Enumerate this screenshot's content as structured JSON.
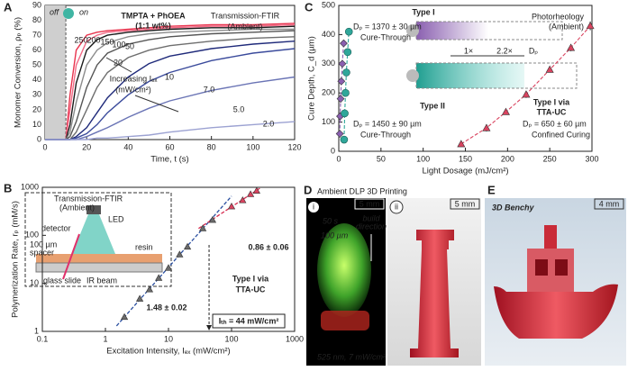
{
  "chart_data": [
    {
      "panel": "A",
      "type": "line",
      "xlabel": "Time, t (s)",
      "ylabel": "Monomer Conversion, ρₚ (%)",
      "x": [
        0,
        10,
        12,
        15,
        20,
        25,
        30,
        40,
        50,
        60,
        80,
        100,
        120
      ],
      "xlim": [
        0,
        120
      ],
      "xticks": [
        0,
        20,
        40,
        60,
        80,
        100,
        120
      ],
      "ylim": [
        0,
        90
      ],
      "yticks": [
        0,
        10,
        20,
        30,
        40,
        50,
        60,
        70,
        80,
        90
      ],
      "grid": false,
      "light_off": {
        "xlim": [
          0,
          10
        ],
        "labels": [
          "off",
          "on"
        ]
      },
      "annotations": [
        "TMPTA + PhOEA",
        "(1:1 wt%)",
        "Transmission-FTIR",
        "(Ambient)",
        "Increasing Iₑₓ",
        "(mW/cm²)"
      ],
      "series": [
        {
          "name": "250",
          "color": "#e8334d",
          "values": [
            0,
            0,
            30,
            60,
            70,
            72,
            73,
            74,
            75,
            76,
            77,
            77,
            78
          ]
        },
        {
          "name": "200",
          "color": "#f26a86",
          "values": [
            0,
            0,
            20,
            50,
            66,
            70,
            72,
            73,
            74,
            75,
            76,
            76,
            77
          ]
        },
        {
          "name": "150",
          "color": "#1a1a1a",
          "values": [
            0,
            0,
            10,
            38,
            60,
            67,
            70,
            72,
            73,
            74,
            75,
            75,
            76
          ]
        },
        {
          "name": "100",
          "color": "#8c8c8c",
          "values": [
            0,
            0,
            5,
            25,
            50,
            60,
            65,
            69,
            71,
            72,
            73,
            74,
            74
          ]
        },
        {
          "name": "50",
          "color": "#555555",
          "values": [
            0,
            0,
            2,
            12,
            35,
            50,
            58,
            64,
            67,
            69,
            71,
            72,
            73
          ]
        },
        {
          "name": "20",
          "color": "#6e6e6e",
          "values": [
            0,
            0,
            0,
            5,
            20,
            35,
            45,
            55,
            60,
            63,
            66,
            68,
            69
          ]
        },
        {
          "name": "10",
          "color": "#1f2a7a",
          "values": [
            0,
            0,
            0,
            2,
            8,
            18,
            28,
            42,
            51,
            56,
            61,
            64,
            66
          ]
        },
        {
          "name": "7.0",
          "color": "#3b4b9c",
          "values": [
            0,
            0,
            0,
            1,
            4,
            10,
            18,
            30,
            39,
            45,
            53,
            58,
            61
          ]
        },
        {
          "name": "5.0",
          "color": "#6a74b5",
          "values": [
            0,
            0,
            0,
            0,
            2,
            5,
            8,
            15,
            21,
            26,
            33,
            38,
            42
          ]
        },
        {
          "name": "2.0",
          "color": "#9ca2d2",
          "values": [
            0,
            0,
            0,
            0,
            0,
            1,
            1,
            2,
            3,
            5,
            8,
            10,
            12
          ]
        }
      ]
    },
    {
      "panel": "B",
      "type": "scatter",
      "log_x": true,
      "log_y": true,
      "xlabel": "Excitation Intensity, Iₑₓ (mW/cm²)",
      "ylabel": "Polymerization Rate, rₚ (mM/s)",
      "xlim": [
        0.1,
        1000
      ],
      "xticks": [
        0.1,
        1,
        10,
        100,
        1000
      ],
      "ylim": [
        1,
        1000
      ],
      "yticks": [
        1,
        10,
        100,
        1000
      ],
      "x": [
        2,
        3.5,
        5,
        7,
        10,
        15,
        20,
        35,
        50,
        100,
        150,
        200,
        250
      ],
      "values": [
        2.0,
        4.8,
        7.5,
        13,
        21,
        40,
        58,
        140,
        210,
        400,
        540,
        720,
        850
      ],
      "colors": [
        "#6b6b6b",
        "#6b6b6b",
        "#6b6b6b",
        "#6b6b6b",
        "#6b6b6b",
        "#6b6b6b",
        "#6b6b6b",
        "#6b6b6b",
        "#6b6b6b",
        "#d9435f",
        "#d9435f",
        "#d9435f",
        "#d9435f"
      ],
      "fits": [
        {
          "x": [
            1.5,
            100
          ],
          "y": [
            1.3,
            654
          ],
          "color": "#2a4fa0",
          "label": "1.48 ± 0.02"
        },
        {
          "x": [
            30,
            280
          ],
          "y": [
            139,
            953
          ],
          "color": "#d62b4f",
          "label": "0.86 ± 0.06"
        }
      ],
      "threshold": {
        "value": 44,
        "label": "Iₜₕ = 44 mW/cm²"
      },
      "annotations": [
        "Type I via",
        "TTA-UC"
      ],
      "inset": {
        "title": "Transmission-FTIR",
        "subtitle": "(Ambient)",
        "labels": [
          "detector",
          "LED",
          "100 µm",
          "spacer",
          "resin",
          "glass slide",
          "IR beam"
        ]
      }
    },
    {
      "panel": "C",
      "type": "scatter",
      "xlabel": "Light Dosage (mJ/cm²)",
      "ylabel": "Cure Depth, C_d (µm)",
      "xlim": [
        0,
        300
      ],
      "xticks": [
        0,
        50,
        100,
        150,
        200,
        250,
        300
      ],
      "ylim": [
        0,
        500
      ],
      "yticks": [
        0,
        100,
        200,
        300,
        400,
        500
      ],
      "annotations": [
        "Photorheology",
        "(Ambient)",
        "1×",
        "2.2×",
        "Dₚ"
      ],
      "series": [
        {
          "name": [
            "Type I"
          ],
          "color": "#8a5fb0",
          "marker": "diamond",
          "x": [
            1.2,
            1.6,
            2.2,
            3,
            4.2,
            5.8
          ],
          "values": [
            60,
            120,
            180,
            240,
            300,
            370
          ],
          "annotations": [
            "Dₚ = 1370 ± 30 µm",
            "Cure-Through"
          ]
        },
        {
          "name": [
            "Type II"
          ],
          "color": "#2fa79a",
          "marker": "circle",
          "x": [
            6.3,
            7,
            8,
            9,
            10.5,
            12
          ],
          "values": [
            40,
            130,
            200,
            270,
            340,
            410
          ],
          "annotations": [
            "Dₚ = 1450 ± 90 µm",
            "Cure-Through"
          ]
        },
        {
          "name": [
            "Type I via",
            "TTA-UC"
          ],
          "color": "#d9435f",
          "marker": "triangle",
          "x": [
            145,
            175,
            198,
            222,
            250,
            275,
            298
          ],
          "values": [
            25,
            80,
            135,
            195,
            280,
            355,
            430
          ],
          "errors": [
            10,
            12,
            10,
            12,
            10,
            12,
            15
          ],
          "annotations": [
            "Dₚ = 650 ± 60 µm",
            "Confined Curing"
          ]
        }
      ]
    }
  ],
  "photos": {
    "panel_d": "D",
    "title": "Ambient DLP 3D Printing",
    "i": {
      "label": "i",
      "time": "50 s",
      "layer": "100 µm",
      "build": [
        "build",
        "direction"
      ],
      "scale": "5 mm",
      "light": "525 nm, 7 mW/cm²"
    },
    "ii": {
      "label": "ii",
      "scale": "5 mm"
    },
    "panel_e": "E",
    "e": {
      "title": "3D Benchy",
      "scale": "4 mm"
    }
  }
}
